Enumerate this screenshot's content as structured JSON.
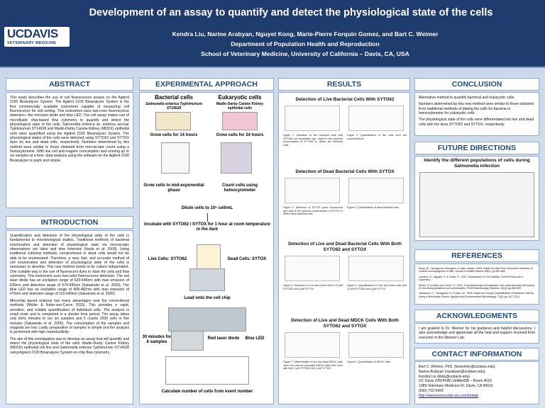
{
  "header": {
    "title": "Development of an assay to quantify and detect the physiological state of the cells",
    "authors": "Kendra Liu, Narine Arabyan, Nguyet Kong, Marie-Pierre Forquin Gomez, and Bart  C. Weimer",
    "department": "Department of Population Health and Reproduction",
    "school": "School of Veterinary Medicine, University of California – Davis, CA, USA",
    "logo": "UCDAVIS",
    "logo_sub": "VETERINARY MEDICINE"
  },
  "abstract": {
    "heading": "ABSTRACT",
    "text": "This study describes the use of cell fluorescence assays on the Agilent 2100 Bioanalyzer System. The Agilent 2100 Bioanalyzer System is the first commercially available instrument capable of measuring cell fluorescence for cell sorting. This instrument uses two-color fluorescence detection—the red laser diode and blue LED. The cell assay makes use of microfluidic chip-based flow cytometry to quantify and detect the physiological state of the cells. Salmonella enterica sp. enterica serovar Typhimurium ST14028 and Madin-Darby Canine Kidney (MDCK) epithelial cells were quantified using the Agilent 2100 Bioanalyzer System. The physiological states of the cells were detected using SYTO62 and SYTOX dyes for live and dead cells, respectively. Numbers determined by this method were similar to those obtained from microscopic count using a hemocytometer. With low cell and reagent consumption and running up to six samples at a time, data analysis using the software on the Agilent 2100 Bioanalyzer is quick and simple."
  },
  "introduction": {
    "heading": "INTRODUCTION",
    "paragraphs": [
      "Quantification and detection of the physiological state of the cells is fundamental to microbiological studies. Traditional methods of bacterial enumeration and detection of physiological state via microscopic observations are labor and time intensive (Ikeda et al. 2009). Using traditional culturing methods, compromised or dead cells would not be able to be enumerated. Therefore, a new, fast, and accurate method of cell enumeration and detection of physiological state of the cells is necessary to develop. This new method needs to be culture independent. One suitable way is the use of fluorescent dyes to stain the cells and flow cytometry. This instrument uses two-color fluorescence detection. The red laser diode has an excitation range of 620-645nm with max emission of 630nm and detection range of 674-695nm (Sakamoto et al. 2005). The blue LED has an excitation range of 458-482nm with max emission of 470nm and detection range of 510-540nm (Sakamoto et al. 2005).",
      "Microchip based analysis has many advantages over the conventional methods (Müller & Nebe-von-Caron 2010). This provides a rapid, sensitive, and reliable quantification of individual cells. The analysis is small scale and is completed in a shorter time period. The assay takes only thirty minutes to run six samples and it counts 2500 cells in five minutes (Sakamoto et al. 2005). The consumption of the samples and reagents are low. Lastly, preparation of samples is simple and the analysis is performed with high reproducibility.",
      "The aim of this investigation was to develop an assay that will quantify and detect the physiological state of the cells: Madin-Darby Canine Kidney (MDCK) epithelial cell line and Salmonella enterica Typhimurium ST14028 using Agilent 2100 Bioanalyzer System on-chip flow cytometry."
    ]
  },
  "approach": {
    "heading": "EXPERIMENTAL APPROACH",
    "bacterial": "Bacterial cells",
    "eukaryotic": "Eukaryotic cells",
    "bacterial_name": "Salmonella enterica Typhimurium ST14028",
    "eukaryotic_name": "Madin-Darby Canine Kidney epithelial cells",
    "grow14": "Grow cells for 14 hours",
    "grow24": "Grow cells for 24 hours",
    "midexp": "Grow cells to mid-exponential phase",
    "count": "Count cells using hemocytometer",
    "dilute": "Dilute cells to 10⁶ cell/mL",
    "incubate": "Incubate with SYTO62 / SYTOX for 1 hour at room temperature in the dark",
    "live": "Live Cells: SYTO62",
    "dead": "Dead Cells: SYTOX",
    "load": "Load onto the cell chip",
    "minutes": "30 minutes for 6 samples",
    "red": "Red laser diode",
    "blue": "Blue LED",
    "calculate": "Calculate number of cells from event number"
  },
  "results": {
    "heading": "RESULTS",
    "sections": [
      {
        "title": "Detection of Live Bacterial Cells With SYTO62",
        "captions": [
          "Figure 1. Detection of live bacterial cells with SYTO62 red fluorescent dye. 10µM is the optimum concentration of SYTO62 to detect live bacterial cells.",
          "Figure 2. Quantification of live cells from cell concentrations."
        ]
      },
      {
        "title": "Detection of Dead Bacterial Cells With SYTOX",
        "captions": [
          "Figure 3. Detection of SYTOX green fluorescent dye; 6µM is the optimum concentration of SYTOX to detect dead bacterial cells.",
          "Figure 4. Quantification of dead bacterial cells."
        ]
      },
      {
        "title": "Detection of Live and Dead Bacterial Cells With Both SYTO62 and SYTOX",
        "captions": [
          "Figure 5. Detection of Live and Dead cells in 10 µM SYTO62 and 6 µM SYTOX.",
          "Figure 6. Quantification of Live and Dead cells with 10 µM SYTO62 and 6 µM SYTOX."
        ]
      },
      {
        "title": "Detection of Live and Dead MDCK Cells With Both SYTO62 and SYTOX",
        "captions": [
          "Figure 7. Differentiation of live and dead MDCK cells when one and six passages MDCK cells were used with both 1 µM SYTO62 and 2 µM SYTOX.",
          "Figure 8. Quantification of MDCK cells."
        ]
      }
    ]
  },
  "conclusion": {
    "heading": "CONCLUSION",
    "items": [
      "Alternative method to quantify bacterial and eukaryotic cells.",
      "Numbers determined by this new method were similar to those obtained from traditional methods of plating the cells for bacteria or hemocytometer for eukaryotic cells.",
      "The physiological state of the cells were differentiated into live and dead cells with the dyes SYTO62 and SYTOX, respectively."
    ]
  },
  "future": {
    "heading": "FUTURE DIRECTIONS",
    "text": "Identify the different populations of cells during Salmonella infection"
  },
  "references": {
    "heading": "REFERENCES",
    "items": [
      "Ikeda, M., Yamaguchi, Nobuyasu, & Nasu, Masao. 2009. Rapid On-chip Flow Cytometric Detection of Listeria monocytogenes in Milk. Journal of Health Science 55(5), pp.851-856.",
      "Johnson, S., Nguyen, V. & Coder, D., 2007. Assessment of Cell Viability. Current Protocols in Cytometry.",
      "Müller, S. & Nebe-von-Caron, G., 2010. Functional single-cell analyses: flow cytometry and cell sorting of microbial populations and communities. FEMS Microbiology Reviews, 34(4), pp.554-587.",
      "Sakamoto, C., Yamaguchi, N. & Nasu, M., 2005. Rapid and Simple Quantification of Bacterial Cells by Using a Microfluidic Device. Applied and Environmental Microbiology, 71(2), pp.1117-1121."
    ]
  },
  "acknowledgements": {
    "heading": "ACKNOWLEDGMENTS",
    "text": "I am grateful to Dr. Weimer for his guidance and helpful discussions. I also acknowledge and appreciate all the help and support received from everyone in the Weimer Lab."
  },
  "contact": {
    "heading": "CONTACT INFORMATION",
    "lines": [
      "Bart C. Weimer, PhD. (bcweimer@ucdavis.edu)",
      "Narine Arabyan (narabyan@ucdavis.edu)",
      "Kendra Liu (kkliu@ucdavis.edu)",
      "UC Davis (VM:PHR) VetMed3B – Room 4016",
      "1089 Veterinary Medicine Dr. Davis, CA 95616",
      "(530) 752-6426",
      "http://weimermicrolab.sex.com/thelab"
    ]
  }
}
